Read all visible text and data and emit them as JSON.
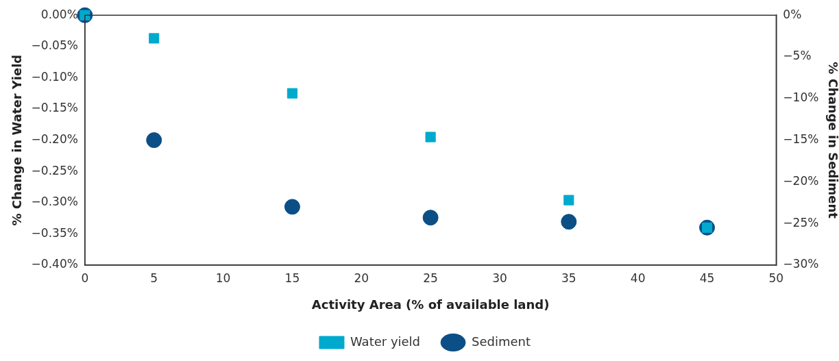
{
  "chart_data": {
    "type": "scatter",
    "xlabel": "Activity Area (% of available land)",
    "ylabel": "% Change in Water Yield",
    "y2label": "% Change in Sediment",
    "xlim": [
      0,
      50
    ],
    "xticks": [
      0,
      5,
      10,
      15,
      20,
      25,
      30,
      35,
      40,
      45,
      50
    ],
    "ylim": [
      -0.4,
      0
    ],
    "yticks": [
      {
        "value": 0,
        "label": "0.00%"
      },
      {
        "value": -0.05,
        "label": "−0.05%"
      },
      {
        "value": -0.1,
        "label": "−0.10%"
      },
      {
        "value": -0.15,
        "label": "−0.15%"
      },
      {
        "value": -0.2,
        "label": "−0.20%"
      },
      {
        "value": -0.25,
        "label": "−0.25%"
      },
      {
        "value": -0.3,
        "label": "−0.30%"
      },
      {
        "value": -0.35,
        "label": "−0.35%"
      },
      {
        "value": -0.4,
        "label": "−0.40%"
      }
    ],
    "y2lim": [
      -30,
      0
    ],
    "y2ticks": [
      {
        "value": 0,
        "label": "0%"
      },
      {
        "value": -5,
        "label": "−5%"
      },
      {
        "value": -10,
        "label": "−10%"
      },
      {
        "value": -15,
        "label": "−15%"
      },
      {
        "value": -20,
        "label": "−20%"
      },
      {
        "value": -25,
        "label": "−25%"
      },
      {
        "value": -30,
        "label": "−30%"
      }
    ],
    "grid": false,
    "legend": "bottom",
    "series": [
      {
        "name": "Water yield",
        "color": "#00a9ce",
        "marker": "square",
        "x": [
          0,
          5,
          15,
          25,
          35,
          45
        ],
        "values": [
          0,
          -0.037,
          -0.125,
          -0.195,
          -0.296,
          -0.34
        ]
      },
      {
        "name": "Sediment",
        "color": "#0b4f86",
        "marker": "circle",
        "axis": "y2",
        "x": [
          0,
          5,
          15,
          25,
          35,
          45
        ],
        "values": [
          0,
          -15,
          -23,
          -24.3,
          -24.8,
          -25.5
        ]
      }
    ]
  }
}
